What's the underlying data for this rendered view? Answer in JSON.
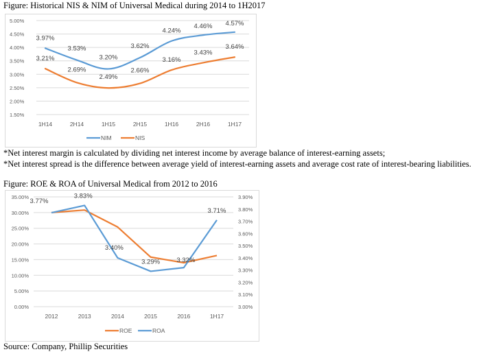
{
  "captions": {
    "figure1": "Figure: Historical NIS & NIM of Universal Medical during 2014 to 1H2017",
    "note1": "*Net interest margin is calculated by dividing net interest income by average balance of interest-earning assets;",
    "note2": "*Net interest spread is the difference between average yield of interest-earning assets and average cost rate of interest-bearing liabilities.",
    "figure2": "Figure: ROE & ROA of Universal Medical from 2012 to 2016",
    "source": "Source: Company, Phillip Securities"
  },
  "colors": {
    "blue": "#5b9bd5",
    "orange": "#ed7d31",
    "grid": "#d9d9d9"
  },
  "chart_data": [
    {
      "type": "line",
      "title": "Historical NIS & NIM of Universal Medical during 2014 to 1H2017",
      "categories": [
        "1H14",
        "2H14",
        "1H15",
        "2H15",
        "1H16",
        "2H16",
        "1H17"
      ],
      "series": [
        {
          "name": "NIM",
          "color": "#5b9bd5",
          "values": [
            3.97,
            3.53,
            3.2,
            3.62,
            4.24,
            4.46,
            4.57
          ],
          "labels": [
            "3.97%",
            "3.53%",
            "3.20%",
            "3.62%",
            "4.24%",
            "4.46%",
            "4.57%"
          ]
        },
        {
          "name": "NIS",
          "color": "#ed7d31",
          "values": [
            3.21,
            2.69,
            2.49,
            2.66,
            3.16,
            3.43,
            3.64
          ],
          "labels": [
            "3.21%",
            "2.69%",
            "2.49%",
            "2.66%",
            "3.16%",
            "3.43%",
            "3.64%"
          ]
        }
      ],
      "ylim": [
        1.5,
        5.0
      ],
      "yticks": [
        1.5,
        2.0,
        2.5,
        3.0,
        3.5,
        4.0,
        4.5,
        5.0
      ],
      "ytick_labels": [
        "1.50%",
        "2.00%",
        "2.50%",
        "3.00%",
        "3.50%",
        "4.00%",
        "4.50%",
        "5.00%"
      ],
      "xlabel": "",
      "ylabel": "",
      "grid": true,
      "smooth": true,
      "legend": "bottom"
    },
    {
      "type": "line",
      "title": "ROE & ROA of Universal Medical from 2012 to 2016",
      "categories": [
        "2012",
        "2013",
        "2014",
        "2015",
        "2016",
        "1H17"
      ],
      "series": [
        {
          "name": "ROE",
          "axis": "left",
          "color": "#ed7d31",
          "values": [
            30.0,
            30.8,
            25.4,
            15.8,
            14.0,
            16.3
          ],
          "labels": []
        },
        {
          "name": "ROA",
          "axis": "right",
          "color": "#5b9bd5",
          "values": [
            3.77,
            3.83,
            3.4,
            3.29,
            3.32,
            3.71
          ],
          "labels": [
            "3.77%",
            "3.83%",
            "3.40%",
            "3.29%",
            "3.32%",
            "3.71%"
          ]
        }
      ],
      "ylim": [
        0,
        35
      ],
      "yticks": [
        0,
        5,
        10,
        15,
        20,
        25,
        30,
        35
      ],
      "ytick_labels": [
        "0.00%",
        "5.00%",
        "10.00%",
        "15.00%",
        "20.00%",
        "25.00%",
        "30.00%",
        "35.00%"
      ],
      "y2lim": [
        3.0,
        3.9
      ],
      "y2ticks": [
        3.0,
        3.1,
        3.2,
        3.3,
        3.4,
        3.5,
        3.6,
        3.7,
        3.8,
        3.9
      ],
      "y2tick_labels": [
        "3.00%",
        "3.10%",
        "3.20%",
        "3.30%",
        "3.40%",
        "3.50%",
        "3.60%",
        "3.70%",
        "3.80%",
        "3.90%"
      ],
      "legend_order": [
        "ROE",
        "ROA"
      ],
      "xlabel": "",
      "ylabel": "",
      "grid": true,
      "smooth": false,
      "legend": "bottom"
    }
  ]
}
